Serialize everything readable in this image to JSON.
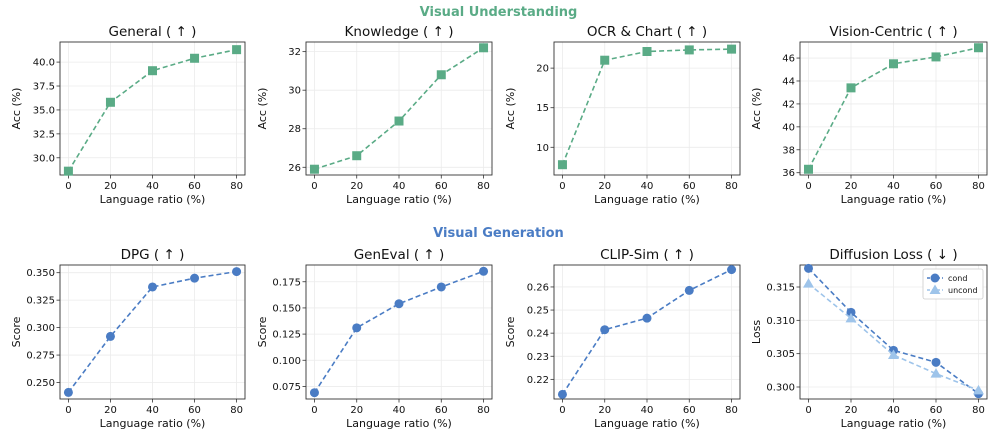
{
  "sections": {
    "understanding": {
      "title": "Visual Understanding",
      "color": "#5aab86"
    },
    "generation": {
      "title": "Visual Generation",
      "color": "#4a7cc4"
    }
  },
  "colors": {
    "green": "#5aab86",
    "blue": "#4a7cc4",
    "light_blue": "#9ec4ea"
  },
  "chart_data": [
    {
      "id": "general",
      "type": "line",
      "title": "General ( ↑ )",
      "xlabel": "Language ratio (%)",
      "ylabel": "Acc (%)",
      "x": [
        0,
        20,
        40,
        60,
        80
      ],
      "xlim": [
        -4,
        84
      ],
      "ylim": [
        28.2,
        42.1
      ],
      "yticks": [
        30.0,
        32.5,
        35.0,
        37.5,
        40.0
      ],
      "ytick_labels": [
        "30.0",
        "32.5",
        "35.0",
        "37.5",
        "40.0"
      ],
      "series": [
        {
          "values": [
            28.6,
            35.8,
            39.1,
            40.4,
            41.3
          ],
          "color": "#5aab86",
          "marker": "square",
          "dash": "5,3"
        }
      ]
    },
    {
      "id": "knowledge",
      "type": "line",
      "title": "Knowledge ( ↑ )",
      "xlabel": "Language ratio (%)",
      "ylabel": "Acc (%)",
      "x": [
        0,
        20,
        40,
        60,
        80
      ],
      "xlim": [
        -4,
        84
      ],
      "ylim": [
        25.6,
        32.5
      ],
      "yticks": [
        26,
        28,
        30,
        32
      ],
      "ytick_labels": [
        "26",
        "28",
        "30",
        "32"
      ],
      "series": [
        {
          "values": [
            25.9,
            26.6,
            28.4,
            30.8,
            32.2
          ],
          "color": "#5aab86",
          "marker": "square",
          "dash": "5,3"
        }
      ]
    },
    {
      "id": "ocr",
      "type": "line",
      "title": "OCR & Chart ( ↑ )",
      "xlabel": "Language ratio (%)",
      "ylabel": "Acc (%)",
      "x": [
        0,
        20,
        40,
        60,
        80
      ],
      "xlim": [
        -4,
        84
      ],
      "ylim": [
        6.5,
        23.3
      ],
      "yticks": [
        10,
        15,
        20
      ],
      "ytick_labels": [
        "10",
        "15",
        "20"
      ],
      "series": [
        {
          "values": [
            7.8,
            21.0,
            22.1,
            22.3,
            22.4
          ],
          "color": "#5aab86",
          "marker": "square",
          "dash": "5,3"
        }
      ]
    },
    {
      "id": "vision",
      "type": "line",
      "title": "Vision-Centric ( ↑ )",
      "xlabel": "Language ratio (%)",
      "ylabel": "Acc (%)",
      "x": [
        0,
        20,
        40,
        60,
        80
      ],
      "xlim": [
        -4,
        84
      ],
      "ylim": [
        35.8,
        47.4
      ],
      "yticks": [
        36,
        38,
        40,
        42,
        44,
        46
      ],
      "ytick_labels": [
        "36",
        "38",
        "40",
        "42",
        "44",
        "46"
      ],
      "series": [
        {
          "values": [
            36.3,
            43.4,
            45.5,
            46.1,
            46.9
          ],
          "color": "#5aab86",
          "marker": "square",
          "dash": "5,3"
        }
      ]
    },
    {
      "id": "dpg",
      "type": "line",
      "title": "DPG ( ↑ )",
      "xlabel": "Language ratio (%)",
      "ylabel": "Score",
      "x": [
        0,
        20,
        40,
        60,
        80
      ],
      "xlim": [
        -4,
        84
      ],
      "ylim": [
        0.235,
        0.357
      ],
      "yticks": [
        0.25,
        0.275,
        0.3,
        0.325,
        0.35
      ],
      "ytick_labels": [
        "0.250",
        "0.275",
        "0.300",
        "0.325",
        "0.350"
      ],
      "series": [
        {
          "values": [
            0.241,
            0.292,
            0.337,
            0.345,
            0.351
          ],
          "color": "#4a7cc4",
          "marker": "circle",
          "dash": "5,3"
        }
      ]
    },
    {
      "id": "geneval",
      "type": "line",
      "title": "GenEval ( ↑ )",
      "xlabel": "Language ratio (%)",
      "ylabel": "Score",
      "x": [
        0,
        20,
        40,
        60,
        80
      ],
      "xlim": [
        -4,
        84
      ],
      "ylim": [
        0.063,
        0.191
      ],
      "yticks": [
        0.075,
        0.1,
        0.125,
        0.15,
        0.175
      ],
      "ytick_labels": [
        "0.075",
        "0.100",
        "0.125",
        "0.150",
        "0.175"
      ],
      "series": [
        {
          "values": [
            0.069,
            0.131,
            0.154,
            0.17,
            0.185
          ],
          "color": "#4a7cc4",
          "marker": "circle",
          "dash": "5,3"
        }
      ]
    },
    {
      "id": "clip",
      "type": "line",
      "title": "CLIP-Sim ( ↑ )",
      "xlabel": "Language ratio (%)",
      "ylabel": "Score",
      "x": [
        0,
        20,
        40,
        60,
        80
      ],
      "xlim": [
        -4,
        84
      ],
      "ylim": [
        0.2115,
        0.2695
      ],
      "yticks": [
        0.22,
        0.23,
        0.24,
        0.25,
        0.26
      ],
      "ytick_labels": [
        "0.22",
        "0.23",
        "0.24",
        "0.25",
        "0.26"
      ],
      "series": [
        {
          "values": [
            0.2135,
            0.2415,
            0.2465,
            0.2585,
            0.2675
          ],
          "color": "#4a7cc4",
          "marker": "circle",
          "dash": "5,3"
        }
      ]
    },
    {
      "id": "diffusion",
      "type": "line",
      "title": "Diffusion Loss ( ↓ )",
      "xlabel": "Language ratio (%)",
      "ylabel": "Loss",
      "x": [
        0,
        20,
        40,
        60,
        80
      ],
      "xlim": [
        -4,
        84
      ],
      "ylim": [
        0.2982,
        0.3183
      ],
      "yticks": [
        0.3,
        0.305,
        0.31,
        0.315
      ],
      "ytick_labels": [
        "0.300",
        "0.305",
        "0.310",
        "0.315"
      ],
      "legend": "top-right",
      "series": [
        {
          "name": "cond",
          "values": [
            0.3178,
            0.3112,
            0.3055,
            0.3037,
            0.299
          ],
          "color": "#4a7cc4",
          "marker": "circle",
          "dash": "5,3"
        },
        {
          "name": "uncond",
          "values": [
            0.3155,
            0.3103,
            0.3048,
            0.302,
            0.2995
          ],
          "color": "#9ec4ea",
          "marker": "triangle",
          "dash": "5,3"
        }
      ]
    }
  ]
}
